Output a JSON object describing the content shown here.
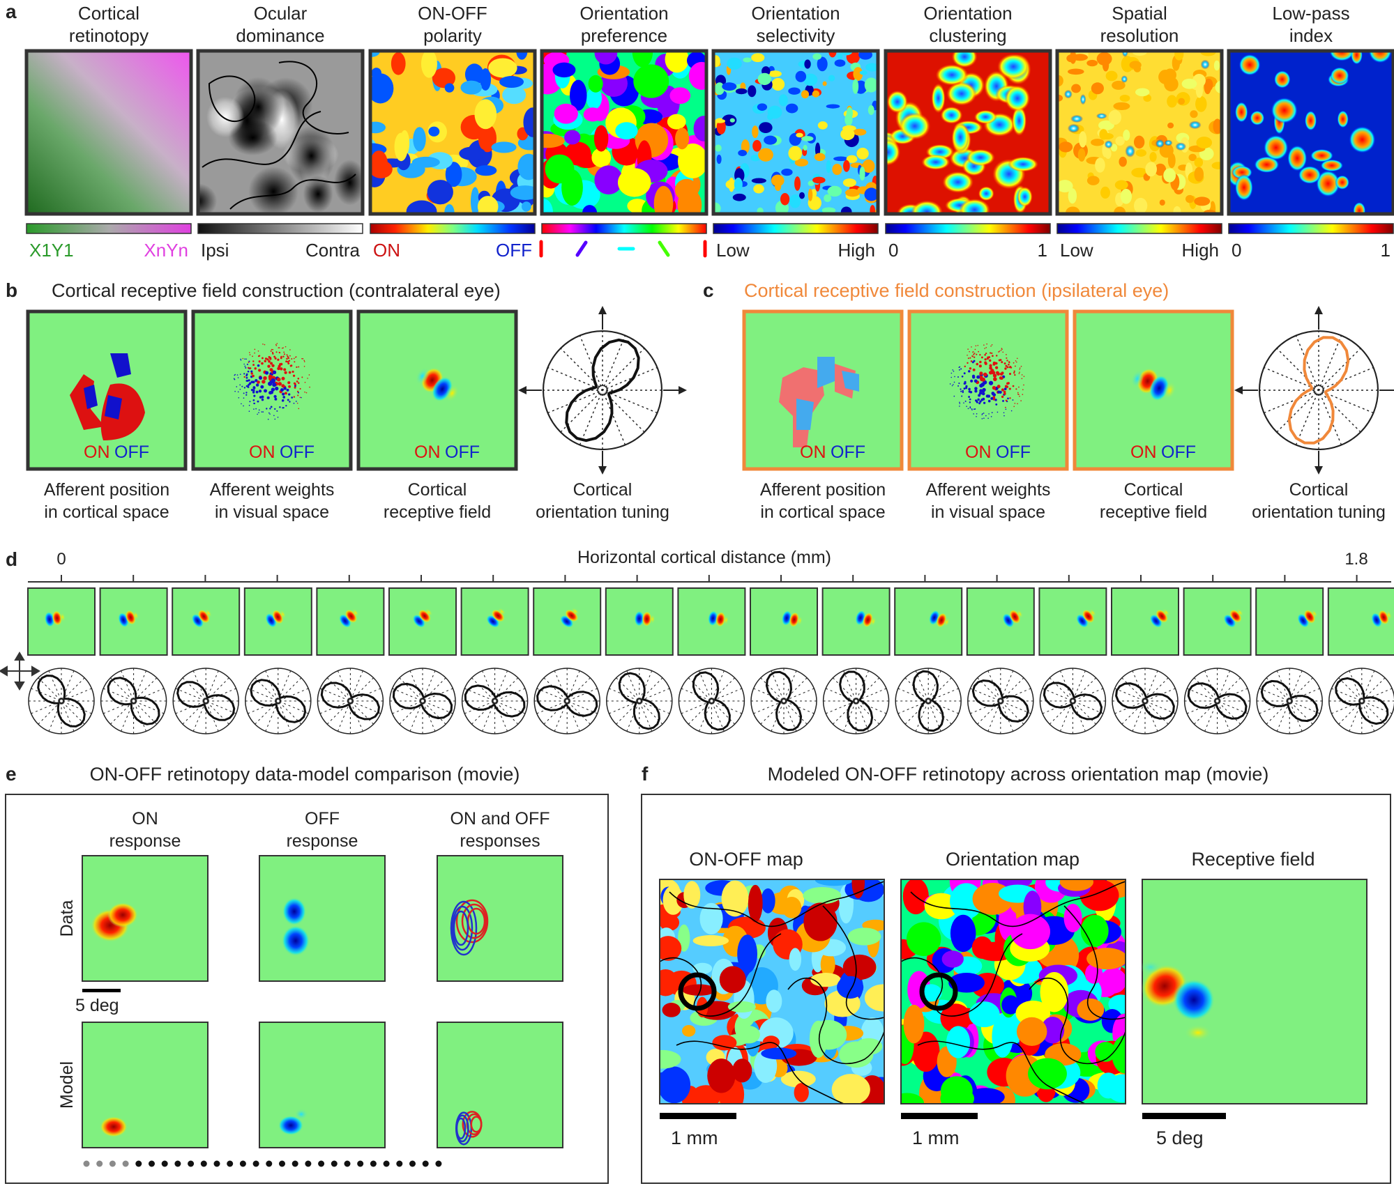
{
  "panel_a": {
    "letter": "a",
    "maps": [
      {
        "title": [
          "Cortical",
          "retinotopy"
        ],
        "scale": [
          "X1Y1",
          "XnYn"
        ]
      },
      {
        "title": [
          "Ocular",
          "dominance"
        ],
        "scale": [
          "Ipsi",
          "Contra"
        ]
      },
      {
        "title": [
          "ON-OFF",
          "polarity"
        ],
        "scale": [
          "ON",
          "OFF"
        ]
      },
      {
        "title": [
          "Orientation",
          "preference"
        ],
        "scale": []
      },
      {
        "title": [
          "Orientation",
          "selectivity"
        ],
        "scale": [
          "Low",
          "High"
        ]
      },
      {
        "title": [
          "Orientation",
          "clustering"
        ],
        "scale": [
          "0",
          "1"
        ]
      },
      {
        "title": [
          "Spatial",
          "resolution"
        ],
        "scale": [
          "Low",
          "High"
        ]
      },
      {
        "title": [
          "Low-pass",
          "index"
        ],
        "scale": [
          "0",
          "1"
        ]
      }
    ]
  },
  "panel_b": {
    "letter": "b",
    "title": "Cortical receptive field construction (contralateral eye)",
    "frame_color": "#333333",
    "captions": [
      [
        "Afferent position",
        "in cortical space"
      ],
      [
        "Afferent weights",
        "in visual space"
      ],
      [
        "Cortical",
        "receptive field"
      ],
      [
        "Cortical",
        "orientation tuning"
      ]
    ],
    "on_label": "ON",
    "off_label": "OFF"
  },
  "panel_c": {
    "letter": "c",
    "title": "Cortical receptive field construction (ipsilateral eye)",
    "frame_color": "#f0883a",
    "captions": [
      [
        "Afferent position",
        "in cortical space"
      ],
      [
        "Afferent weights",
        "in visual space"
      ],
      [
        "Cortical",
        "receptive field"
      ],
      [
        "Cortical",
        "orientation tuning"
      ]
    ],
    "on_label": "ON",
    "off_label": "OFF"
  },
  "panel_d": {
    "letter": "d",
    "axis_label": "Horizontal cortical distance (mm)",
    "tick_start": "0",
    "tick_end": "1.8",
    "n_fields": 19,
    "orientations_deg": [
      50,
      40,
      25,
      32,
      22,
      18,
      12,
      10,
      62,
      68,
      72,
      76,
      80,
      30,
      22,
      20,
      20,
      28,
      38
    ]
  },
  "panel_e": {
    "letter": "e",
    "title": "ON-OFF retinotopy data-model comparison (movie)",
    "columns": [
      [
        "ON",
        "response"
      ],
      [
        "OFF",
        "response"
      ],
      [
        "ON and OFF",
        "responses"
      ]
    ],
    "rows": [
      "Data",
      "Model"
    ],
    "scale_label": "5 deg",
    "n_dots": 28,
    "n_grey_dots": 4
  },
  "panel_f": {
    "letter": "f",
    "title": "Modeled ON-OFF retinotopy across orientation map (movie)",
    "maps": [
      "ON-OFF map",
      "Orientation map",
      "Receptive field"
    ],
    "scales": [
      "1 mm",
      "1 mm",
      "5 deg"
    ]
  },
  "colors": {
    "green_bg": "#80f080",
    "on": "#dd1111",
    "off": "#1122cc",
    "orange": "#f0883a",
    "frame": "#333333"
  }
}
